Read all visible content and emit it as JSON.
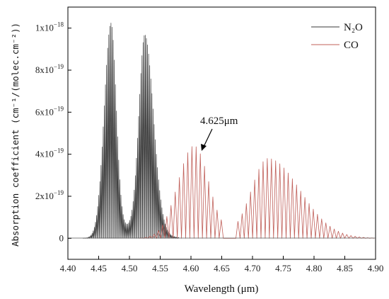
{
  "chart_data": {
    "type": "line",
    "title": "",
    "xlabel": "Wavelength (μm)",
    "ylabel": "Absorption coefficient (cm⁻¹/(molec.cm⁻²))",
    "xlim": [
      4.4,
      4.9
    ],
    "ylim": [
      -0.1,
      1.1
    ],
    "y_scale_note": "×10⁻¹⁸",
    "x_ticks": [
      {
        "v": 4.4,
        "label": "4.40"
      },
      {
        "v": 4.45,
        "label": "4.45"
      },
      {
        "v": 4.5,
        "label": "4.50"
      },
      {
        "v": 4.55,
        "label": "4.55"
      },
      {
        "v": 4.6,
        "label": "4.60"
      },
      {
        "v": 4.65,
        "label": "4.65"
      },
      {
        "v": 4.7,
        "label": "4.70"
      },
      {
        "v": 4.75,
        "label": "4.75"
      },
      {
        "v": 4.8,
        "label": "4.80"
      },
      {
        "v": 4.85,
        "label": "4.85"
      },
      {
        "v": 4.9,
        "label": "4.90"
      }
    ],
    "y_ticks": [
      {
        "v": 0.0,
        "base": "0",
        "exp": ""
      },
      {
        "v": 0.2,
        "base": "2x10",
        "exp": "−19"
      },
      {
        "v": 0.4,
        "base": "4x10",
        "exp": "−19"
      },
      {
        "v": 0.6,
        "base": "6x10",
        "exp": "−19"
      },
      {
        "v": 0.8,
        "base": "8x10",
        "exp": "−19"
      },
      {
        "v": 1.0,
        "base": "1x10",
        "exp": "−18"
      }
    ],
    "legend_position": "top-right",
    "series": [
      {
        "name": "N₂O",
        "color": "#3a3a3a",
        "line_spacing_um": 0.0018,
        "bands": [
          {
            "center": 4.47,
            "peak": 1.0,
            "sigma_left": 0.011,
            "sigma_right": 0.0085
          },
          {
            "center": 4.525,
            "peak": 0.93,
            "sigma_left": 0.0095,
            "sigma_right": 0.014
          },
          {
            "center": 4.5,
            "peak": 0.05,
            "sigma_left": 0.025,
            "sigma_right": 0.035
          }
        ],
        "x_range": [
          4.425,
          4.58
        ]
      },
      {
        "name": "CO",
        "color": "#c0605a",
        "line_spacing_um": 0.0068,
        "gap_um": [
          4.655,
          4.675
        ],
        "bands": [
          {
            "center": 4.605,
            "peak": 0.44,
            "sigma_left": 0.026,
            "sigma_right": 0.024
          },
          {
            "center": 4.725,
            "peak": 0.38,
            "sigma_left": 0.027,
            "sigma_right": 0.052
          }
        ],
        "x_range": [
          4.52,
          4.895
        ]
      }
    ],
    "annotations": [
      {
        "text": "4.625μm",
        "x": 4.625,
        "y": 0.44
      }
    ]
  }
}
